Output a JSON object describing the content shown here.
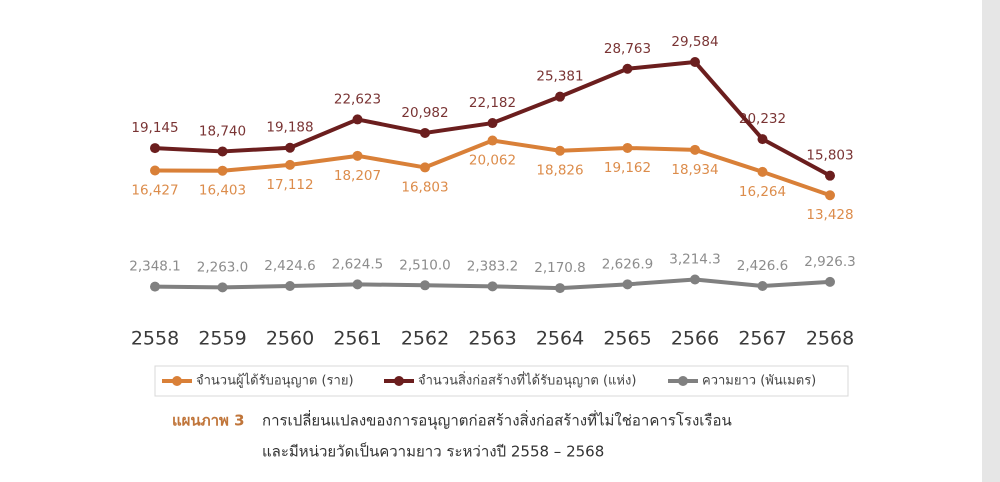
{
  "chart_data": {
    "type": "line",
    "categories": [
      "2558",
      "2559",
      "2560",
      "2561",
      "2562",
      "2563",
      "2564",
      "2565",
      "2566",
      "2567",
      "2568"
    ],
    "series": [
      {
        "name": "จำนวนสิ่งก่อสร้างที่ได้รับอนุญาต (แห่ง)",
        "color": "#6b1e1e",
        "values": [
          19145,
          18740,
          19188,
          22623,
          20982,
          22182,
          25381,
          28763,
          29584,
          20232,
          15803
        ],
        "value_labels": [
          "19,145",
          "18,740",
          "19,188",
          "22,623",
          "20,982",
          "22,182",
          "25,381",
          "28,763",
          "29,584",
          "20,232",
          "15,803"
        ]
      },
      {
        "name": "จำนวนผู้ได้รับอนุญาต (ราย)",
        "color": "#d98038",
        "values": [
          16427,
          16403,
          17112,
          18207,
          16803,
          20062,
          18826,
          19162,
          18934,
          16264,
          13428
        ],
        "value_labels": [
          "16,427",
          "16,403",
          "17,112",
          "18,207",
          "16,803",
          "20,062",
          "18,826",
          "19,162",
          "18,934",
          "16,264",
          "13,428"
        ]
      },
      {
        "name": "ความยาว (พันเมตร)",
        "color": "#808080",
        "values": [
          2348.1,
          2263.0,
          2424.6,
          2624.5,
          2510.0,
          2383.2,
          2170.8,
          2626.9,
          3214.3,
          2426.6,
          2926.3
        ],
        "value_labels": [
          "2,348.1",
          "2,263.0",
          "2,424.6",
          "2,624.5",
          "2,510.0",
          "2,383.2",
          "2,170.8",
          "2,626.9",
          "3,214.3",
          "2,426.6",
          "2,926.3"
        ]
      }
    ],
    "caption_label": "แผนภาพ 3",
    "caption_lines": [
      "การเปลี่ยนแปลงของการอนุญาตก่อสร้างสิ่งก่อสร้างที่ไม่ใช่อาคารโรงเรือน",
      "และมีหน่วยวัดเป็นความยาว ระหว่างปี 2558 – 2568"
    ]
  }
}
